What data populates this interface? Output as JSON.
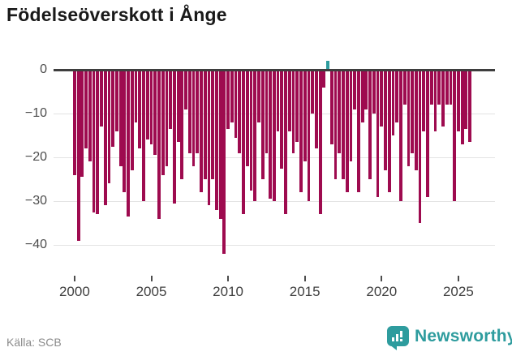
{
  "title": "Födelseöverskott i Ånge",
  "source": "Källa: SCB",
  "logo": {
    "text": "Newsworthy",
    "icon": "newsworthy-bubble-chart-icon"
  },
  "colors": {
    "negative_bar": "#9e0b4f",
    "positive_bar": "#2e9c9e",
    "zero_line": "#3e3e3e",
    "gridline": "#e3e3e3",
    "axis_text": "#4d4d4d",
    "title_text": "#191919",
    "source_text": "#8b8b8b",
    "brand_teal": "#2e9c9e"
  },
  "chart_data": {
    "type": "bar",
    "title": "Födelseöverskott i Ånge",
    "xlabel": "",
    "ylabel": "",
    "frequency": "quarterly",
    "x_start": "2000-Q1",
    "x_end": "2025-Q4",
    "yticks": [
      0,
      -10,
      -20,
      -30,
      -40
    ],
    "xticks": [
      2000,
      2005,
      2010,
      2015,
      2020,
      2025
    ],
    "ylim": [
      -44,
      3
    ],
    "grid": true,
    "legend": false,
    "values": [
      -24,
      -39,
      -24.5,
      -18,
      -21,
      -32.5,
      -33,
      -13,
      -31,
      -26,
      -17.5,
      -14,
      -22,
      -28,
      -33.5,
      -23,
      -12,
      -18,
      -30,
      -16,
      -17,
      -19.5,
      -34,
      -24,
      -22,
      -13.5,
      -30.5,
      -16.5,
      -25,
      -9,
      -19,
      -22,
      -19,
      -28,
      -25,
      -31,
      -25,
      -32,
      -34,
      -42,
      -13.5,
      -12,
      -15.5,
      -19,
      -33,
      -22,
      -27.5,
      -30,
      -12,
      -25,
      -19,
      -29.5,
      -30,
      -14,
      -22.5,
      -33,
      -14,
      -19,
      -16.5,
      -28,
      -21,
      -30,
      -10,
      -18,
      -33,
      -4,
      2,
      -17,
      -25,
      -19,
      -25,
      -28,
      -21,
      -9,
      -28,
      -12,
      -9,
      -25,
      -10,
      -29,
      -13,
      -23,
      -28,
      -15,
      -12,
      -30,
      -8,
      -22,
      -19,
      -23,
      -35,
      -14,
      -29,
      -8,
      -14,
      -8,
      -13,
      -8,
      -8,
      -30,
      -14,
      -17,
      -13.5,
      -16.5
    ]
  }
}
